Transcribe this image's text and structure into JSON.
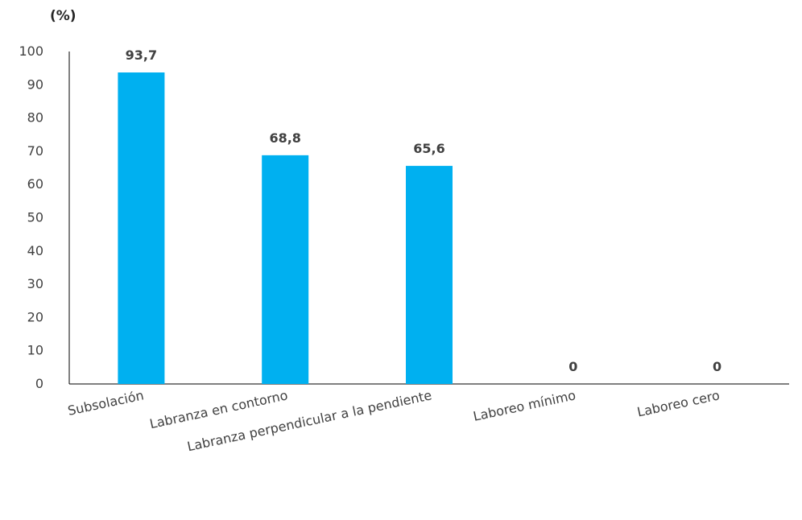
{
  "chart_data": {
    "type": "bar",
    "unit_label": "(%)",
    "categories": [
      "Subsolación",
      "Labranza en contorno",
      "Labranza perpendicular a la pendiente",
      "Laboreo mínimo",
      "Laboreo cero"
    ],
    "values": [
      93.7,
      68.8,
      65.6,
      0,
      0
    ],
    "value_labels": [
      "93,7",
      "68,8",
      "65,6",
      "0",
      "0"
    ],
    "y_ticks": [
      "0",
      "10",
      "20",
      "30",
      "40",
      "50",
      "60",
      "70",
      "80",
      "90",
      "100"
    ],
    "ylim": [
      0,
      100
    ],
    "grid": false,
    "legend": "none",
    "bar_color": "#00B0F0",
    "axis_color": "#000000",
    "xlabel": "",
    "ylabel": ""
  }
}
